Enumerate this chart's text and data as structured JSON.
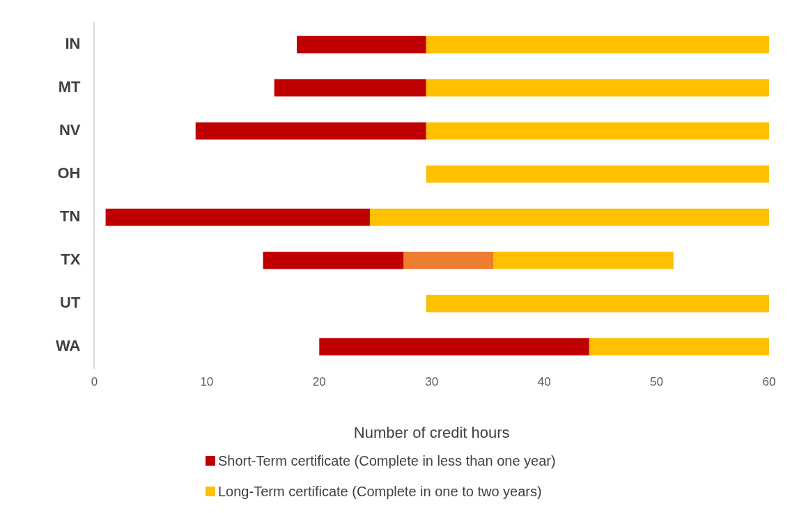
{
  "chart_data": {
    "type": "bar",
    "orientation": "horizontal",
    "xlabel": "Number of credit hours",
    "categories": [
      "IN",
      "MT",
      "NV",
      "OH",
      "TN",
      "TX",
      "UT",
      "WA"
    ],
    "series": [
      {
        "name": "Short-Term certificate (Complete in less than one year)",
        "color": "#c00000",
        "base": [
          18,
          16,
          9,
          null,
          1,
          15,
          null,
          20
        ],
        "values": [
          11.5,
          13.5,
          20.5,
          null,
          23.5,
          12.5,
          null,
          24
        ]
      },
      {
        "color": "#ed7d31",
        "base": [
          null,
          null,
          null,
          null,
          null,
          27.5,
          null,
          null
        ],
        "values": [
          null,
          null,
          null,
          null,
          null,
          8,
          null,
          null
        ]
      },
      {
        "name": "Long-Term certificate (Complete in one to two years)",
        "color": "#ffc000",
        "base": [
          29.5,
          29.5,
          29.5,
          29.5,
          24.5,
          35.5,
          29.5,
          44
        ],
        "values": [
          30.5,
          30.5,
          30.5,
          30.5,
          35.5,
          16,
          30.5,
          16
        ]
      }
    ],
    "xlim": [
      0,
      60
    ],
    "xticks": [
      0,
      10,
      20,
      30,
      40,
      50,
      60
    ],
    "grid": false,
    "legend": "bottom"
  }
}
